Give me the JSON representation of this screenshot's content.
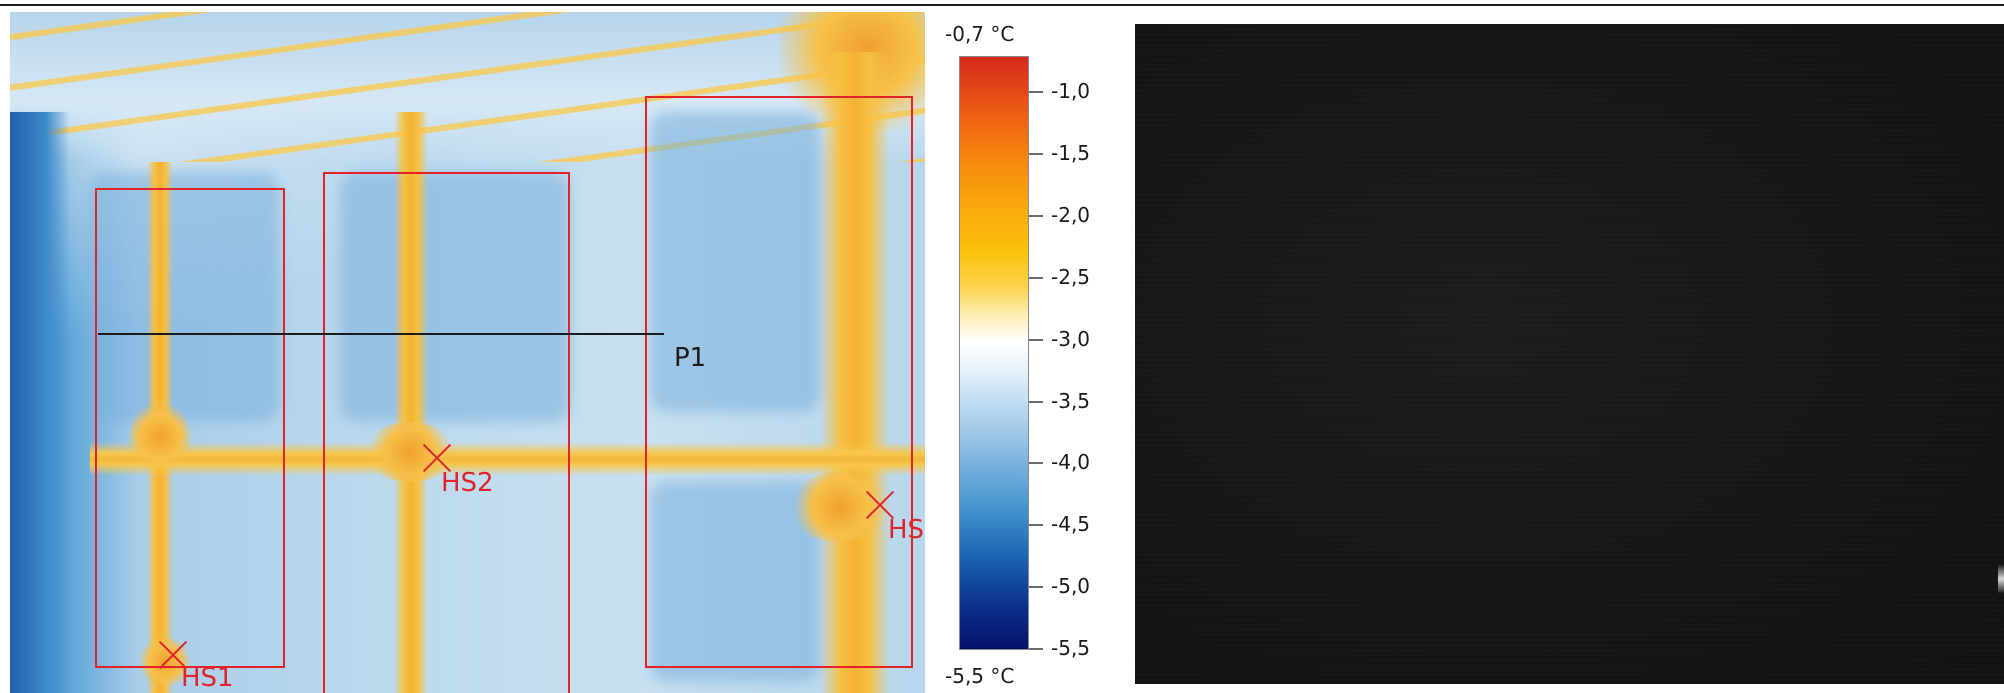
{
  "thermal_image": {
    "profile_label": "P1",
    "hotspots": [
      {
        "label": "HS1"
      },
      {
        "label": "HS2"
      },
      {
        "label": "HS"
      }
    ]
  },
  "color_scale": {
    "max_label": "-0,7 °C",
    "min_label": "-5,5 °C",
    "ticks": [
      "-1,0",
      "-1,5",
      "-2,0",
      "-2,5",
      "-3,0",
      "-3,5",
      "-4,0",
      "-4,5",
      "-5,0",
      "-5,5"
    ],
    "colors": [
      "#d42a1c",
      "#f7860e",
      "#fbc20c",
      "#ffffff",
      "#7fb5df",
      "#1a5fb0",
      "#06106a"
    ]
  }
}
